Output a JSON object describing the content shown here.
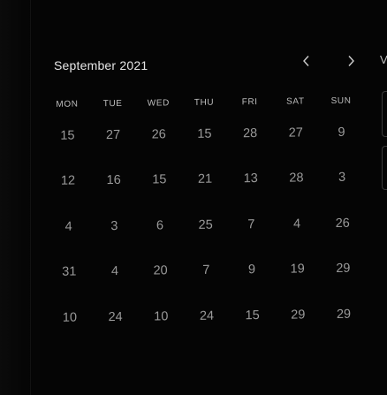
{
  "calendar": {
    "month_label": "September 2021",
    "prev_icon": "chevron-left-icon",
    "next_icon": "chevron-right-icon",
    "weekdays": [
      "MON",
      "TUE",
      "WED",
      "THU",
      "FRI",
      "SAT",
      "SUN"
    ],
    "weeks": [
      [
        "15",
        "27",
        "26",
        "15",
        "28",
        "27",
        "9"
      ],
      [
        "12",
        "16",
        "15",
        "21",
        "13",
        "28",
        "3"
      ],
      [
        "4",
        "3",
        "6",
        "25",
        "7",
        "4",
        "26"
      ],
      [
        "31",
        "4",
        "20",
        "7",
        "9",
        "19",
        "29"
      ],
      [
        "10",
        "24",
        "10",
        "24",
        "15",
        "29",
        "29"
      ]
    ]
  },
  "right_panel": {
    "edge_letter": "V"
  },
  "colors": {
    "background": "#050505",
    "text": "#d9d9d9",
    "day_text": "#9a9a9a"
  }
}
